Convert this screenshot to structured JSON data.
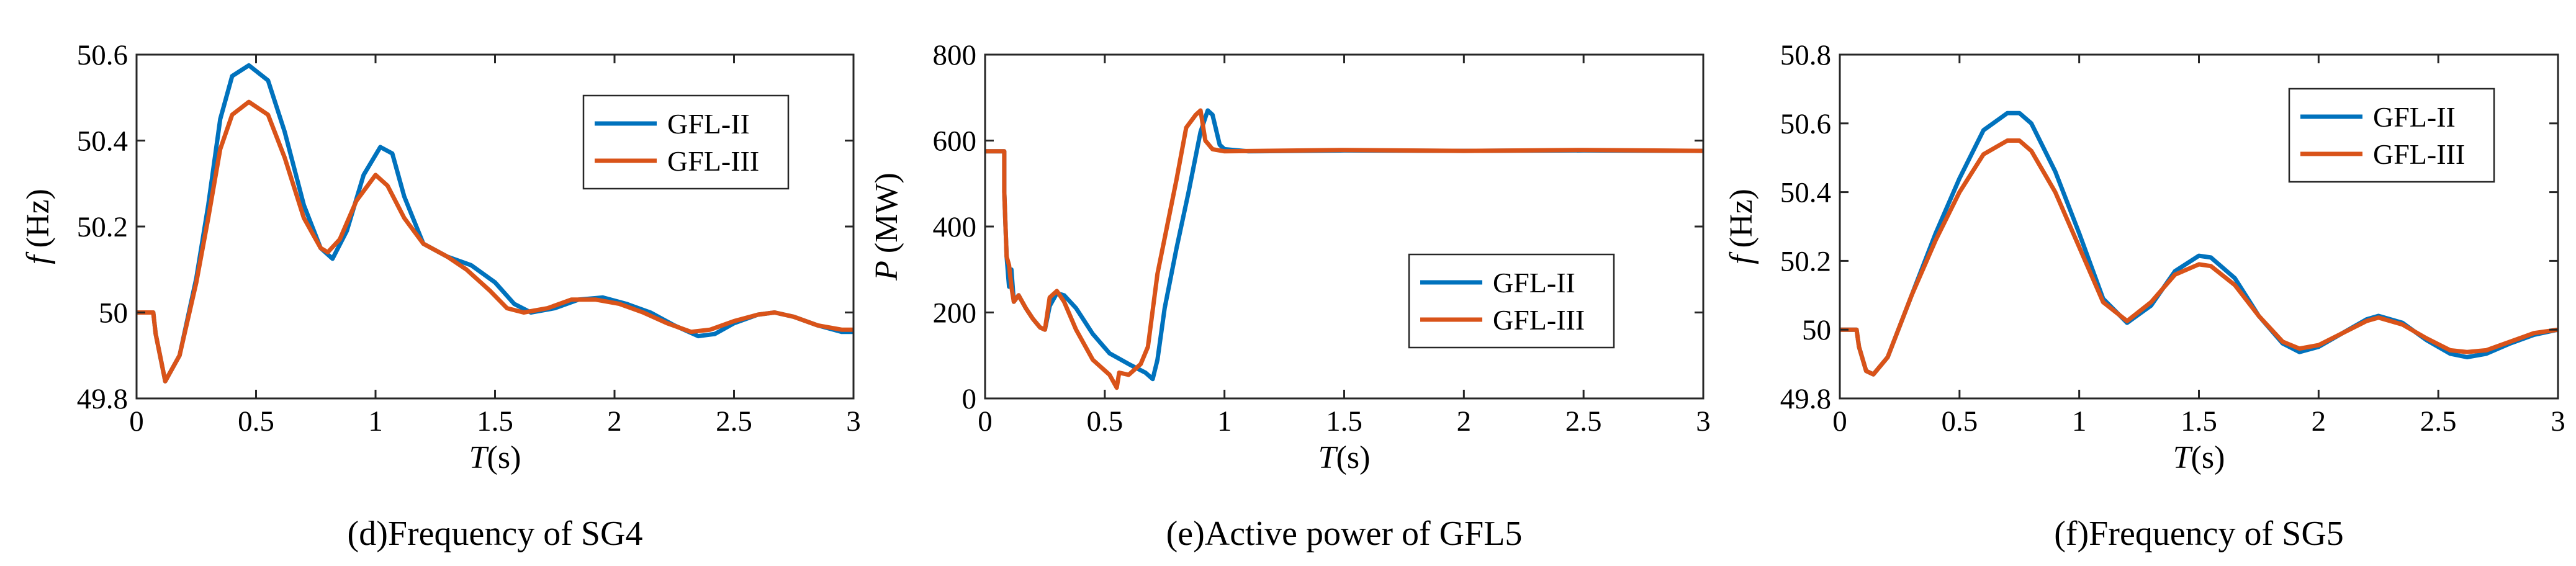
{
  "colors": {
    "series1": "#0072BD",
    "series2": "#D95319"
  },
  "chart_data": [
    {
      "type": "line",
      "caption": "(d)Frequency of SG4",
      "ylabel_var": "f",
      "ylabel_unit": "(Hz)",
      "xlabel_var": "T",
      "xlabel_unit": "(s)",
      "xlim": [
        0,
        3
      ],
      "ylim": [
        49.8,
        50.6
      ],
      "xticks": [
        0,
        0.5,
        1,
        1.5,
        2,
        2.5,
        3
      ],
      "xtick_labels": [
        "0",
        "0.5",
        "1",
        "1.5",
        "2",
        "2.5",
        "3"
      ],
      "yticks": [
        49.8,
        50,
        50.2,
        50.4,
        50.6
      ],
      "ytick_labels": [
        "49.8",
        "50",
        "50.2",
        "50.4",
        "50.6"
      ],
      "legend_position": "top-right",
      "series": [
        {
          "name": "GFL-II",
          "points": [
            [
              0,
              50
            ],
            [
              0.07,
              50
            ],
            [
              0.08,
              49.95
            ],
            [
              0.12,
              49.84
            ],
            [
              0.18,
              49.9
            ],
            [
              0.25,
              50.08
            ],
            [
              0.3,
              50.25
            ],
            [
              0.35,
              50.45
            ],
            [
              0.4,
              50.55
            ],
            [
              0.47,
              50.575
            ],
            [
              0.55,
              50.54
            ],
            [
              0.62,
              50.42
            ],
            [
              0.7,
              50.25
            ],
            [
              0.77,
              50.15
            ],
            [
              0.82,
              50.125
            ],
            [
              0.88,
              50.19
            ],
            [
              0.95,
              50.32
            ],
            [
              1.02,
              50.385
            ],
            [
              1.07,
              50.37
            ],
            [
              1.12,
              50.27
            ],
            [
              1.2,
              50.16
            ],
            [
              1.3,
              50.13
            ],
            [
              1.4,
              50.11
            ],
            [
              1.5,
              50.07
            ],
            [
              1.58,
              50.02
            ],
            [
              1.65,
              50.0
            ],
            [
              1.75,
              50.01
            ],
            [
              1.85,
              50.03
            ],
            [
              1.95,
              50.035
            ],
            [
              2.05,
              50.02
            ],
            [
              2.15,
              50.0
            ],
            [
              2.25,
              49.97
            ],
            [
              2.35,
              49.945
            ],
            [
              2.42,
              49.95
            ],
            [
              2.5,
              49.975
            ],
            [
              2.6,
              49.995
            ],
            [
              2.67,
              50.0
            ],
            [
              2.75,
              49.99
            ],
            [
              2.85,
              49.97
            ],
            [
              2.95,
              49.955
            ],
            [
              3.0,
              49.955
            ]
          ]
        },
        {
          "name": "GFL-III",
          "points": [
            [
              0,
              50
            ],
            [
              0.07,
              50
            ],
            [
              0.08,
              49.95
            ],
            [
              0.12,
              49.84
            ],
            [
              0.18,
              49.9
            ],
            [
              0.25,
              50.07
            ],
            [
              0.3,
              50.22
            ],
            [
              0.35,
              50.38
            ],
            [
              0.4,
              50.46
            ],
            [
              0.47,
              50.49
            ],
            [
              0.55,
              50.46
            ],
            [
              0.62,
              50.36
            ],
            [
              0.7,
              50.22
            ],
            [
              0.77,
              50.15
            ],
            [
              0.8,
              50.14
            ],
            [
              0.85,
              50.17
            ],
            [
              0.92,
              50.26
            ],
            [
              1.0,
              50.32
            ],
            [
              1.05,
              50.295
            ],
            [
              1.12,
              50.22
            ],
            [
              1.2,
              50.16
            ],
            [
              1.3,
              50.13
            ],
            [
              1.38,
              50.1
            ],
            [
              1.48,
              50.05
            ],
            [
              1.55,
              50.01
            ],
            [
              1.62,
              50.0
            ],
            [
              1.72,
              50.01
            ],
            [
              1.82,
              50.03
            ],
            [
              1.92,
              50.03
            ],
            [
              2.02,
              50.02
            ],
            [
              2.12,
              50.0
            ],
            [
              2.22,
              49.975
            ],
            [
              2.32,
              49.955
            ],
            [
              2.4,
              49.96
            ],
            [
              2.5,
              49.98
            ],
            [
              2.6,
              49.995
            ],
            [
              2.67,
              50.0
            ],
            [
              2.75,
              49.99
            ],
            [
              2.85,
              49.97
            ],
            [
              2.95,
              49.96
            ],
            [
              3.0,
              49.96
            ]
          ]
        }
      ]
    },
    {
      "type": "line",
      "caption": "(e)Active power of GFL5",
      "ylabel_var": "P",
      "ylabel_unit": "(MW)",
      "xlabel_var": "T",
      "xlabel_unit": "(s)",
      "xlim": [
        0,
        3
      ],
      "ylim": [
        0,
        800
      ],
      "xticks": [
        0,
        0.5,
        1,
        1.5,
        2,
        2.5,
        3
      ],
      "xtick_labels": [
        "0",
        "0.5",
        "1",
        "1.5",
        "2",
        "2.5",
        "3"
      ],
      "yticks": [
        0,
        200,
        400,
        600,
        800
      ],
      "ytick_labels": [
        "0",
        "200",
        "400",
        "600",
        "800"
      ],
      "legend_position": "center-right",
      "series": [
        {
          "name": "GFL-II",
          "points": [
            [
              0,
              575
            ],
            [
              0.08,
              575
            ],
            [
              0.08,
              480
            ],
            [
              0.09,
              330
            ],
            [
              0.1,
              260
            ],
            [
              0.11,
              300
            ],
            [
              0.12,
              225
            ],
            [
              0.14,
              240
            ],
            [
              0.17,
              210
            ],
            [
              0.2,
              185
            ],
            [
              0.23,
              165
            ],
            [
              0.25,
              160
            ],
            [
              0.27,
              215
            ],
            [
              0.3,
              245
            ],
            [
              0.33,
              240
            ],
            [
              0.38,
              210
            ],
            [
              0.45,
              150
            ],
            [
              0.52,
              105
            ],
            [
              0.6,
              80
            ],
            [
              0.67,
              60
            ],
            [
              0.7,
              45
            ],
            [
              0.72,
              90
            ],
            [
              0.75,
              210
            ],
            [
              0.8,
              350
            ],
            [
              0.85,
              480
            ],
            [
              0.9,
              620
            ],
            [
              0.93,
              670
            ],
            [
              0.95,
              660
            ],
            [
              0.98,
              590
            ],
            [
              1.0,
              580
            ],
            [
              1.1,
              575
            ],
            [
              1.5,
              577
            ],
            [
              2.0,
              576
            ],
            [
              2.5,
              577
            ],
            [
              3.0,
              576
            ]
          ]
        },
        {
          "name": "GFL-III",
          "points": [
            [
              0,
              575
            ],
            [
              0.08,
              575
            ],
            [
              0.08,
              480
            ],
            [
              0.09,
              330
            ],
            [
              0.1,
              310
            ],
            [
              0.11,
              260
            ],
            [
              0.12,
              225
            ],
            [
              0.14,
              240
            ],
            [
              0.17,
              210
            ],
            [
              0.2,
              185
            ],
            [
              0.23,
              165
            ],
            [
              0.25,
              160
            ],
            [
              0.27,
              235
            ],
            [
              0.3,
              250
            ],
            [
              0.33,
              225
            ],
            [
              0.38,
              160
            ],
            [
              0.45,
              90
            ],
            [
              0.52,
              55
            ],
            [
              0.55,
              25
            ],
            [
              0.56,
              60
            ],
            [
              0.6,
              55
            ],
            [
              0.65,
              80
            ],
            [
              0.68,
              120
            ],
            [
              0.72,
              290
            ],
            [
              0.76,
              400
            ],
            [
              0.8,
              510
            ],
            [
              0.84,
              630
            ],
            [
              0.88,
              660
            ],
            [
              0.9,
              670
            ],
            [
              0.92,
              600
            ],
            [
              0.95,
              580
            ],
            [
              1.0,
              575
            ],
            [
              1.5,
              578
            ],
            [
              2.0,
              576
            ],
            [
              2.5,
              578
            ],
            [
              3.0,
              576
            ]
          ]
        }
      ]
    },
    {
      "type": "line",
      "caption": "(f)Frequency of SG5",
      "ylabel_var": "f",
      "ylabel_unit": "(Hz)",
      "xlabel_var": "T",
      "xlabel_unit": "(s)",
      "xlim": [
        0,
        3
      ],
      "ylim": [
        49.8,
        50.8
      ],
      "xticks": [
        0,
        0.5,
        1,
        1.5,
        2,
        2.5,
        3
      ],
      "xtick_labels": [
        "0",
        "0.5",
        "1",
        "1.5",
        "2",
        "2.5",
        "3"
      ],
      "yticks": [
        49.8,
        50,
        50.2,
        50.4,
        50.6,
        50.8
      ],
      "ytick_labels": [
        "49.8",
        "50",
        "50.2",
        "50.4",
        "50.6",
        "50.8"
      ],
      "legend_position": "top-right",
      "series": [
        {
          "name": "GFL-II",
          "points": [
            [
              0,
              50
            ],
            [
              0.07,
              50
            ],
            [
              0.08,
              49.95
            ],
            [
              0.11,
              49.88
            ],
            [
              0.14,
              49.87
            ],
            [
              0.2,
              49.92
            ],
            [
              0.3,
              50.1
            ],
            [
              0.4,
              50.28
            ],
            [
              0.5,
              50.44
            ],
            [
              0.6,
              50.58
            ],
            [
              0.7,
              50.63
            ],
            [
              0.75,
              50.63
            ],
            [
              0.8,
              50.6
            ],
            [
              0.9,
              50.46
            ],
            [
              1.0,
              50.28
            ],
            [
              1.1,
              50.09
            ],
            [
              1.2,
              50.02
            ],
            [
              1.3,
              50.07
            ],
            [
              1.4,
              50.17
            ],
            [
              1.5,
              50.215
            ],
            [
              1.55,
              50.21
            ],
            [
              1.65,
              50.15
            ],
            [
              1.75,
              50.04
            ],
            [
              1.85,
              49.96
            ],
            [
              1.92,
              49.935
            ],
            [
              2.0,
              49.95
            ],
            [
              2.1,
              49.99
            ],
            [
              2.2,
              50.03
            ],
            [
              2.25,
              50.04
            ],
            [
              2.35,
              50.02
            ],
            [
              2.45,
              49.97
            ],
            [
              2.55,
              49.93
            ],
            [
              2.62,
              49.92
            ],
            [
              2.7,
              49.93
            ],
            [
              2.8,
              49.96
            ],
            [
              2.9,
              49.985
            ],
            [
              3.0,
              50.0
            ]
          ]
        },
        {
          "name": "GFL-III",
          "points": [
            [
              0,
              50
            ],
            [
              0.07,
              50
            ],
            [
              0.08,
              49.95
            ],
            [
              0.11,
              49.88
            ],
            [
              0.14,
              49.87
            ],
            [
              0.2,
              49.92
            ],
            [
              0.3,
              50.1
            ],
            [
              0.4,
              50.26
            ],
            [
              0.5,
              50.4
            ],
            [
              0.6,
              50.51
            ],
            [
              0.7,
              50.55
            ],
            [
              0.75,
              50.55
            ],
            [
              0.8,
              50.52
            ],
            [
              0.9,
              50.4
            ],
            [
              1.0,
              50.24
            ],
            [
              1.1,
              50.08
            ],
            [
              1.2,
              50.025
            ],
            [
              1.3,
              50.08
            ],
            [
              1.4,
              50.16
            ],
            [
              1.5,
              50.19
            ],
            [
              1.55,
              50.185
            ],
            [
              1.65,
              50.13
            ],
            [
              1.75,
              50.04
            ],
            [
              1.85,
              49.965
            ],
            [
              1.92,
              49.945
            ],
            [
              2.0,
              49.955
            ],
            [
              2.1,
              49.99
            ],
            [
              2.2,
              50.025
            ],
            [
              2.25,
              50.035
            ],
            [
              2.35,
              50.015
            ],
            [
              2.45,
              49.975
            ],
            [
              2.55,
              49.94
            ],
            [
              2.62,
              49.935
            ],
            [
              2.7,
              49.94
            ],
            [
              2.8,
              49.965
            ],
            [
              2.9,
              49.99
            ],
            [
              3.0,
              50.0
            ]
          ]
        }
      ]
    }
  ]
}
